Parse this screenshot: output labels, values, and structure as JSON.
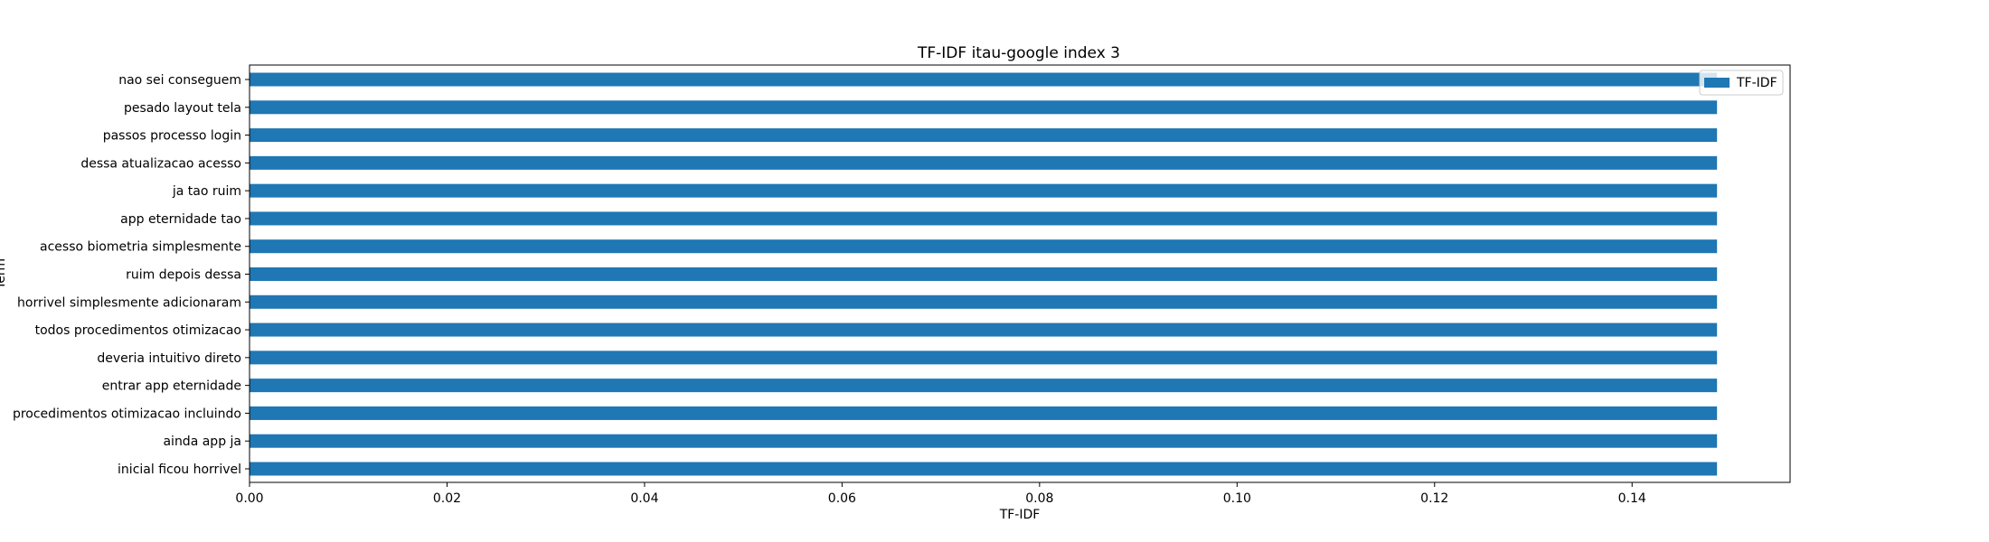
{
  "chart_data": {
    "type": "bar",
    "orientation": "horizontal",
    "title": "TF-IDF itau-google index 3",
    "xlabel": "TF-IDF",
    "ylabel": "Term",
    "xlim": [
      0,
      0.156
    ],
    "x_ticks": [
      "0.00",
      "0.02",
      "0.04",
      "0.06",
      "0.08",
      "0.10",
      "0.12",
      "0.14"
    ],
    "categories": [
      "nao sei conseguem",
      "pesado layout tela",
      "passos processo login",
      "dessa atualizacao acesso",
      "ja tao ruim",
      "app eternidade tao",
      "acesso biometria simplesmente",
      "ruim depois dessa",
      "horrivel simplesmente adicionaram",
      "todos procedimentos otimizacao",
      "deveria intuitivo direto",
      "entrar app eternidade",
      "procedimentos otimizacao incluindo",
      "ainda app ja",
      "inicial ficou horrivel"
    ],
    "series": [
      {
        "name": "TF-IDF",
        "color": "#1f77b4",
        "values": [
          0.1486,
          0.1486,
          0.1486,
          0.1486,
          0.1486,
          0.1486,
          0.1486,
          0.1486,
          0.1486,
          0.1486,
          0.1486,
          0.1486,
          0.1486,
          0.1486,
          0.1486
        ]
      }
    ],
    "legend": {
      "position": "upper right",
      "entries": [
        "TF-IDF"
      ]
    },
    "grid": false
  }
}
